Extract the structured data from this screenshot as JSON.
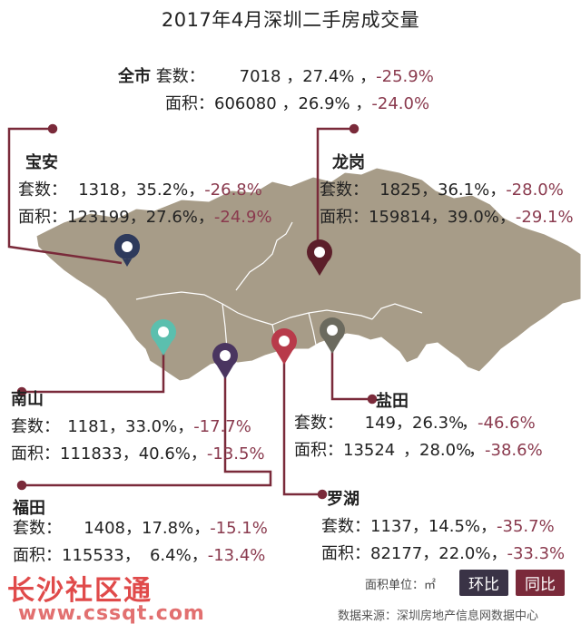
{
  "title": "2017年4月深圳二手房成交量",
  "labels": {
    "sets": "套数：",
    "area": "面积："
  },
  "total": {
    "name": "全市",
    "sets": {
      "value": "7018",
      "mom": "27.4%",
      "yoy": "-25.9%"
    },
    "area": {
      "value": "606080",
      "mom": "26.9%",
      "yoy": "-24.0%"
    }
  },
  "districts": {
    "baoan": {
      "name": "宝安",
      "sets": {
        "value": "1318",
        "mom": "35.2%",
        "yoy": "-26.8%"
      },
      "area": {
        "value": "123199",
        "mom": "27.6%",
        "yoy": "-24.9%"
      },
      "pin_color": "#2e3a5c"
    },
    "longgang": {
      "name": "龙岗",
      "sets": {
        "value": "1825",
        "mom": "36.1%",
        "yoy": "-28.0%"
      },
      "area": {
        "value": "159814",
        "mom": "39.0%",
        "yoy": "-29.1%"
      },
      "pin_color": "#5c1f2a"
    },
    "nanshan": {
      "name": "南山",
      "sets": {
        "value": "1181",
        "mom": "33.0%",
        "yoy": "-17.7%"
      },
      "area": {
        "value": "111833",
        "mom": "40.6%",
        "yoy": "-13.5%"
      },
      "pin_color": "#5bbfae"
    },
    "yantian": {
      "name": "盐田",
      "sets": {
        "value": "149",
        "mom": "26.3%",
        "yoy": "-46.6%"
      },
      "area": {
        "value": "13524",
        "mom": "28.0%",
        "yoy": "-38.6%"
      },
      "pin_color": "#6b6a5e"
    },
    "futian": {
      "name": "福田",
      "sets": {
        "value": "1408",
        "mom": "17.8%",
        "yoy": "-15.1%"
      },
      "area": {
        "value": "115533",
        "mom": "6.4%",
        "yoy": "-13.4%"
      },
      "pin_color": "#4a3560"
    },
    "luohu": {
      "name": "罗湖",
      "sets": {
        "value": "1137",
        "mom": "14.5%",
        "yoy": "-35.7%"
      },
      "area": {
        "value": "82177",
        "mom": "22.0%",
        "yoy": "-33.3%"
      },
      "pin_color": "#b83a4a"
    }
  },
  "legend": {
    "unit": "面积单位：㎡",
    "mom_label": "环比",
    "yoy_label": "同比",
    "mom_color": "#3a3346",
    "yoy_color": "#7a2a3a"
  },
  "source": "数据来源：深圳房地产信息网数据中心",
  "watermark": {
    "line1": "长沙社区通",
    "line2": "www.cssqt.com"
  }
}
